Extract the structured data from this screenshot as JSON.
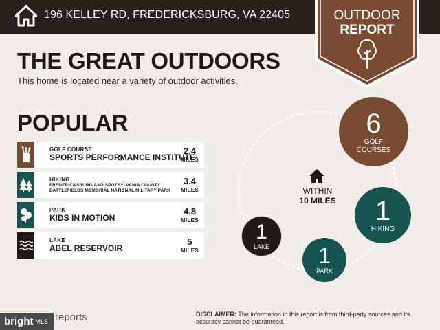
{
  "header": {
    "address": "196 KELLEY RD, FREDERICKSBURG, VA 22405",
    "badge_line1": "OUTDOOR",
    "badge_line2": "REPORT",
    "badge_color": "#7a4a32"
  },
  "main": {
    "title": "THE GREAT OUTDOORS",
    "subtitle": "This home is located near a variety of outdoor activities.",
    "popular_heading": "POPULAR",
    "popular": [
      {
        "category": "GOLF COURSE",
        "name": "SPORTS PERFORMANCE INSTITUTE",
        "distance": "2.4",
        "unit": "MILES",
        "icon": "golf-bag-icon",
        "color": "#7a4a32"
      },
      {
        "category": "HIKING",
        "name_line1": "FREDERICKSBURG AND SPOTSYLVANIA COUNTY",
        "name_line2": "BATTLEFIELDS MEMORIAL NATIONAL MILITARY PARK",
        "distance": "3.4",
        "unit": "MILES",
        "icon": "pine-trees-icon",
        "color": "#17544f"
      },
      {
        "category": "PARK",
        "name": "KIDS IN MOTION",
        "distance": "4.8",
        "unit": "MILES",
        "icon": "park-icon",
        "color": "#17544f"
      },
      {
        "category": "LAKE",
        "name": "ABEL RESERVOIR",
        "distance": "5",
        "unit": "MILES",
        "icon": "waves-icon",
        "color": "#221a17"
      }
    ]
  },
  "summary": {
    "within_line1": "WITHIN",
    "within_line2": "10 MILES",
    "circles": [
      {
        "count": "6",
        "label_line1": "GOLF",
        "label_line2": "COURSES",
        "color": "#7a4a32"
      },
      {
        "count": "1",
        "label_line1": "HIKING",
        "label_line2": "",
        "color": "#17544f"
      },
      {
        "count": "1",
        "label_line1": "PARK",
        "label_line2": "",
        "color": "#17544f"
      },
      {
        "count": "1",
        "label_line1": "LAKE",
        "label_line2": "",
        "color": "#221a17"
      }
    ]
  },
  "footer": {
    "brand": "bright",
    "brand_suffix": "MLS",
    "reports": "reports",
    "disclaimer_label": "DISCLAIMER:",
    "disclaimer_text": " The information in this report is from third-party sources and its accuracy cannot be guaranteed."
  }
}
